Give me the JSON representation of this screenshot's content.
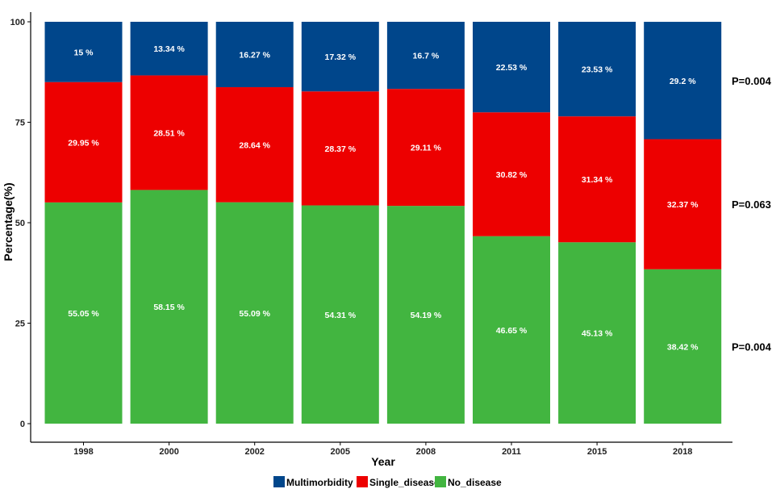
{
  "chart_data": {
    "type": "bar",
    "stacked": true,
    "title": "",
    "xlabel": "Year",
    "ylabel": "Percentage(%)",
    "ylim": [
      0,
      100
    ],
    "yticks": [
      0,
      25,
      50,
      75,
      100
    ],
    "categories": [
      "1998",
      "2000",
      "2002",
      "2005",
      "2008",
      "2011",
      "2015",
      "2018"
    ],
    "series": [
      {
        "name": "No_disease",
        "color": "#42b540",
        "values": [
          55.05,
          58.15,
          55.09,
          54.31,
          54.19,
          46.65,
          45.13,
          38.42
        ],
        "labels": [
          "55.05 %",
          "58.15 %",
          "55.09 %",
          "54.31 %",
          "54.19 %",
          "46.65 %",
          "45.13 %",
          "38.42 %"
        ]
      },
      {
        "name": "Single_disease",
        "color": "#ed0000",
        "values": [
          29.95,
          28.51,
          28.64,
          28.37,
          29.11,
          30.82,
          31.34,
          32.37
        ],
        "labels": [
          "29.95 %",
          "28.51 %",
          "28.64 %",
          "28.37 %",
          "29.11 %",
          "30.82 %",
          "31.34 %",
          "32.37 %"
        ]
      },
      {
        "name": "Multimorbidity",
        "color": "#00468b",
        "values": [
          15,
          13.34,
          16.27,
          17.32,
          16.7,
          22.53,
          23.53,
          29.2
        ],
        "labels": [
          "15 %",
          "13.34 %",
          "16.27 %",
          "17.32 %",
          "16.7 %",
          "22.53 %",
          "23.53 %",
          "29.2 %"
        ]
      }
    ],
    "annotations": [
      {
        "series": "Multimorbidity",
        "text": "P=0.004"
      },
      {
        "series": "Single_disease",
        "text": "P=0.063"
      },
      {
        "series": "No_disease",
        "text": "P=0.004"
      }
    ],
    "legend": {
      "placement": "bottom",
      "entries": [
        {
          "label": "Multimorbidity",
          "color": "#00468b"
        },
        {
          "label": "Single_disease",
          "color": "#ed0000"
        },
        {
          "label": "No_disease",
          "color": "#42b540"
        }
      ]
    }
  }
}
